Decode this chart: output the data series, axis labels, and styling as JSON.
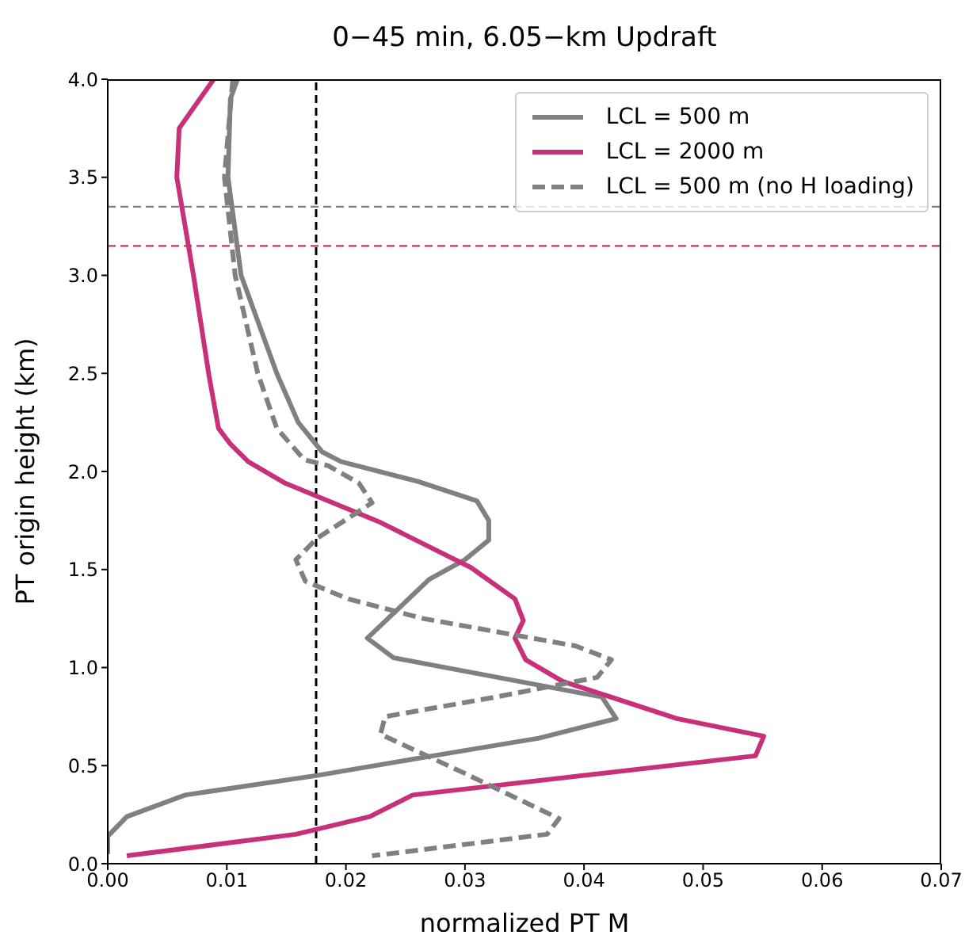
{
  "chart_data": {
    "type": "line",
    "title": "0−45 min, 6.05−km Updraft",
    "xlabel": "normalized PT M",
    "ylabel": "PT origin height (km)",
    "xlim": [
      0,
      0.07
    ],
    "xticks": [
      {
        "value": 0,
        "label": "0.00"
      },
      {
        "value": 0.01,
        "label": "0.01"
      },
      {
        "value": 0.02,
        "label": "0.02"
      },
      {
        "value": 0.03,
        "label": "0.03"
      },
      {
        "value": 0.04,
        "label": "0.04"
      },
      {
        "value": 0.05,
        "label": "0.05"
      },
      {
        "value": 0.06,
        "label": "0.06"
      },
      {
        "value": 0.07,
        "label": "0.07"
      }
    ],
    "ylim": [
      0,
      4
    ],
    "yticks": [
      {
        "value": 0,
        "label": "0.0"
      },
      {
        "value": 0.5,
        "label": "0.5"
      },
      {
        "value": 1,
        "label": "1.0"
      },
      {
        "value": 1.5,
        "label": "1.5"
      },
      {
        "value": 2,
        "label": "2.0"
      },
      {
        "value": 2.5,
        "label": "2.5"
      },
      {
        "value": 3,
        "label": "3.0"
      },
      {
        "value": 3.5,
        "label": "3.5"
      },
      {
        "value": 4,
        "label": "4.0"
      }
    ],
    "grid": false,
    "legend": "top right",
    "marker": "none",
    "series": [
      {
        "name": "LCL = 500 m",
        "color": "#808080",
        "line_style": "solid",
        "x": [
          0.0109,
          0.0103,
          0.0101,
          0.0112,
          0.0142,
          0.016,
          0.018,
          0.0196,
          0.026,
          0.031,
          0.032,
          0.032,
          0.03,
          0.027,
          0.0218,
          0.024,
          0.0415,
          0.0427,
          0.0362,
          0.0273,
          0.0176,
          0.0065,
          0.0016,
          0.0,
          0.0
        ],
        "values": [
          4.0,
          3.9,
          3.5,
          3.0,
          2.5,
          2.25,
          2.1,
          2.05,
          1.95,
          1.85,
          1.75,
          1.65,
          1.55,
          1.45,
          1.15,
          1.05,
          0.85,
          0.74,
          0.64,
          0.55,
          0.45,
          0.35,
          0.24,
          0.14,
          0.05
        ]
      },
      {
        "name": "LCL = 2000 m",
        "color": "#c8307a",
        "line_style": "solid",
        "x": [
          0.0089,
          0.006,
          0.0058,
          0.0072,
          0.0085,
          0.0093,
          0.0103,
          0.0118,
          0.0149,
          0.0229,
          0.0305,
          0.0342,
          0.0349,
          0.0342,
          0.0351,
          0.0382,
          0.0478,
          0.0551,
          0.0544,
          0.0256,
          0.022,
          0.0158,
          0.0016
        ],
        "values": [
          4.0,
          3.75,
          3.5,
          3.0,
          2.49,
          2.22,
          2.14,
          2.05,
          1.94,
          1.74,
          1.51,
          1.35,
          1.24,
          1.15,
          1.04,
          0.93,
          0.74,
          0.65,
          0.55,
          0.35,
          0.24,
          0.15,
          0.04
        ]
      },
      {
        "name": "LCL = 500 m (no H loading)",
        "color": "#808080",
        "line_style": "dashed",
        "x": [
          0.0105,
          0.0098,
          0.0107,
          0.0126,
          0.0142,
          0.0165,
          0.0185,
          0.0211,
          0.0222,
          0.0176,
          0.0158,
          0.0166,
          0.0202,
          0.0265,
          0.0393,
          0.0423,
          0.0411,
          0.0326,
          0.0233,
          0.0229,
          0.03,
          0.0379,
          0.0369,
          0.0222
        ],
        "values": [
          4.0,
          3.5,
          3.0,
          2.5,
          2.22,
          2.06,
          2.03,
          1.94,
          1.84,
          1.66,
          1.55,
          1.44,
          1.35,
          1.25,
          1.11,
          1.04,
          0.95,
          0.85,
          0.75,
          0.66,
          0.46,
          0.23,
          0.15,
          0.04
        ]
      }
    ],
    "ref_lines": [
      {
        "axis": "x",
        "value": 0.0175,
        "color": "#000000",
        "line_style": "dashed"
      },
      {
        "axis": "y",
        "value": 3.35,
        "color": "#808080",
        "line_style": "dashed"
      },
      {
        "axis": "y",
        "value": 3.15,
        "color": "#c8307a",
        "line_style": "dashed"
      }
    ]
  }
}
